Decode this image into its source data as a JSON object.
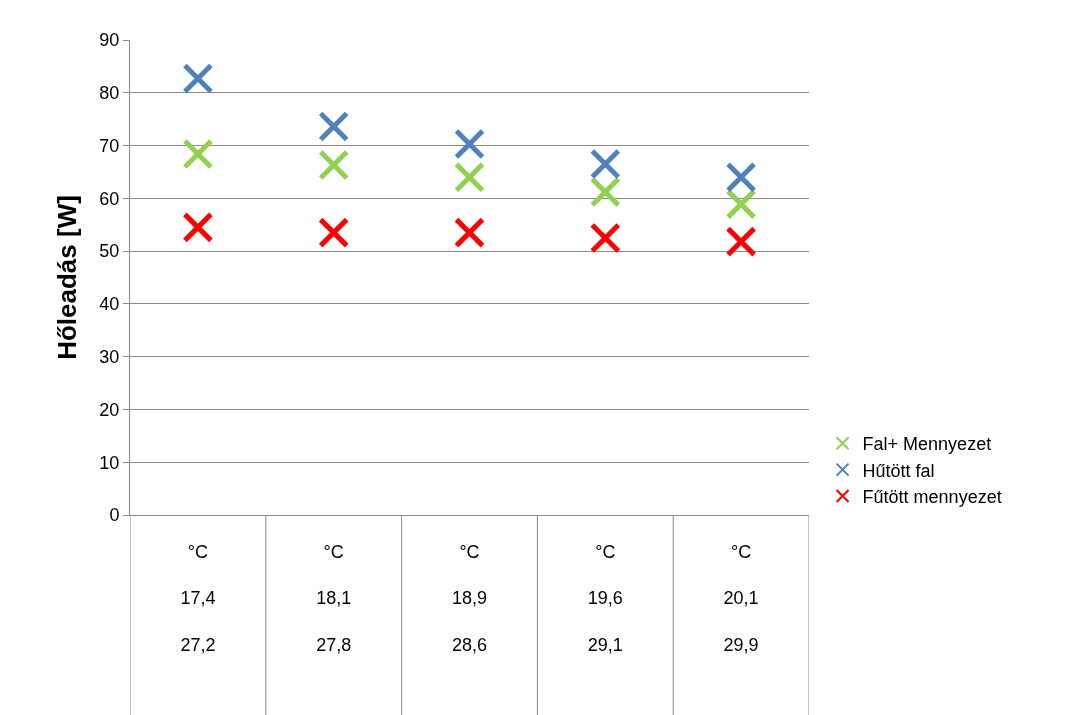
{
  "chart_data": {
    "type": "scatter",
    "ylabel": "Hőleadás [W]",
    "categories": [
      "°C\n\n17,4\n\n27,2",
      "°C\n\n18,1\n\n27,8",
      "°C\n\n18,9\n\n28,6",
      "°C\n\n19,6\n\n29,1",
      "°C\n\n20,1\n\n29,9"
    ],
    "series": [
      {
        "name": "Fal+ Mennyezet",
        "color": "#92d050",
        "values": [
          68.4,
          66.3,
          64.0,
          61.2,
          58.9
        ]
      },
      {
        "name": "Hűtött fal",
        "color": "#4f81bd",
        "values": [
          82.7,
          73.6,
          70.3,
          66.5,
          64.0
        ]
      },
      {
        "name": "Fűtött mennyezet",
        "color": "#ff0000",
        "values": [
          54.5,
          53.5,
          53.5,
          52.5,
          51.8
        ]
      }
    ],
    "ylim": [
      0,
      90
    ],
    "yticks": [
      0,
      10,
      20,
      30,
      40,
      50,
      60,
      70,
      80,
      90
    ],
    "grid": "y",
    "legend": "right",
    "marker": "cross"
  }
}
